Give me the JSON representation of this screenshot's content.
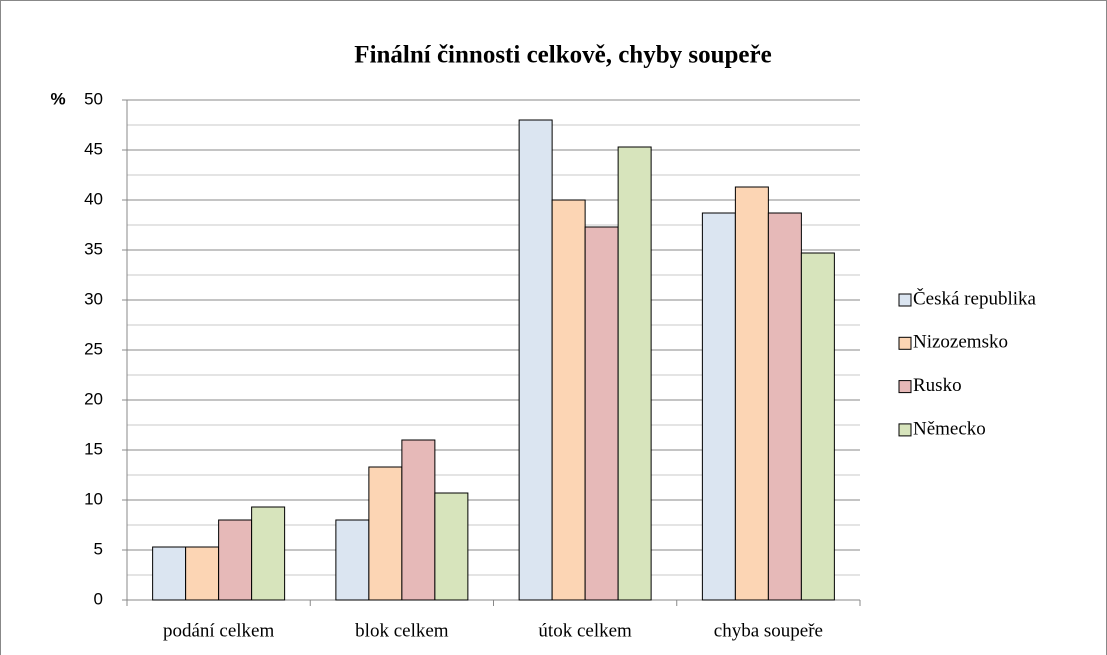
{
  "chart_data": {
    "type": "bar",
    "title": "Finální činnosti celkově, chyby soupeře",
    "y_label": "%",
    "categories": [
      "podání celkem",
      "blok celkem",
      "útok celkem",
      "chyba soupeře"
    ],
    "series": [
      {
        "name": "Česká republika",
        "color": "#dbe5f1",
        "values": [
          5.3,
          8.0,
          48.0,
          38.7
        ]
      },
      {
        "name": "Nizozemsko",
        "color": "#fcd5b4",
        "values": [
          5.3,
          13.3,
          40.0,
          41.3
        ]
      },
      {
        "name": "Rusko",
        "color": "#e6b9b8",
        "values": [
          8.0,
          16.0,
          37.3,
          38.7
        ]
      },
      {
        "name": "Německo",
        "color": "#d7e4bc",
        "values": [
          9.3,
          10.7,
          45.3,
          34.7
        ]
      }
    ],
    "ylim": [
      0,
      50
    ],
    "yticks": [
      0,
      5,
      10,
      15,
      20,
      25,
      30,
      35,
      40,
      45,
      50
    ],
    "yticks_minor": [
      2.5,
      7.5,
      12.5,
      17.5,
      22.5,
      27.5,
      32.5,
      37.5,
      42.5,
      47.5
    ],
    "grid": true,
    "legend": "right"
  }
}
